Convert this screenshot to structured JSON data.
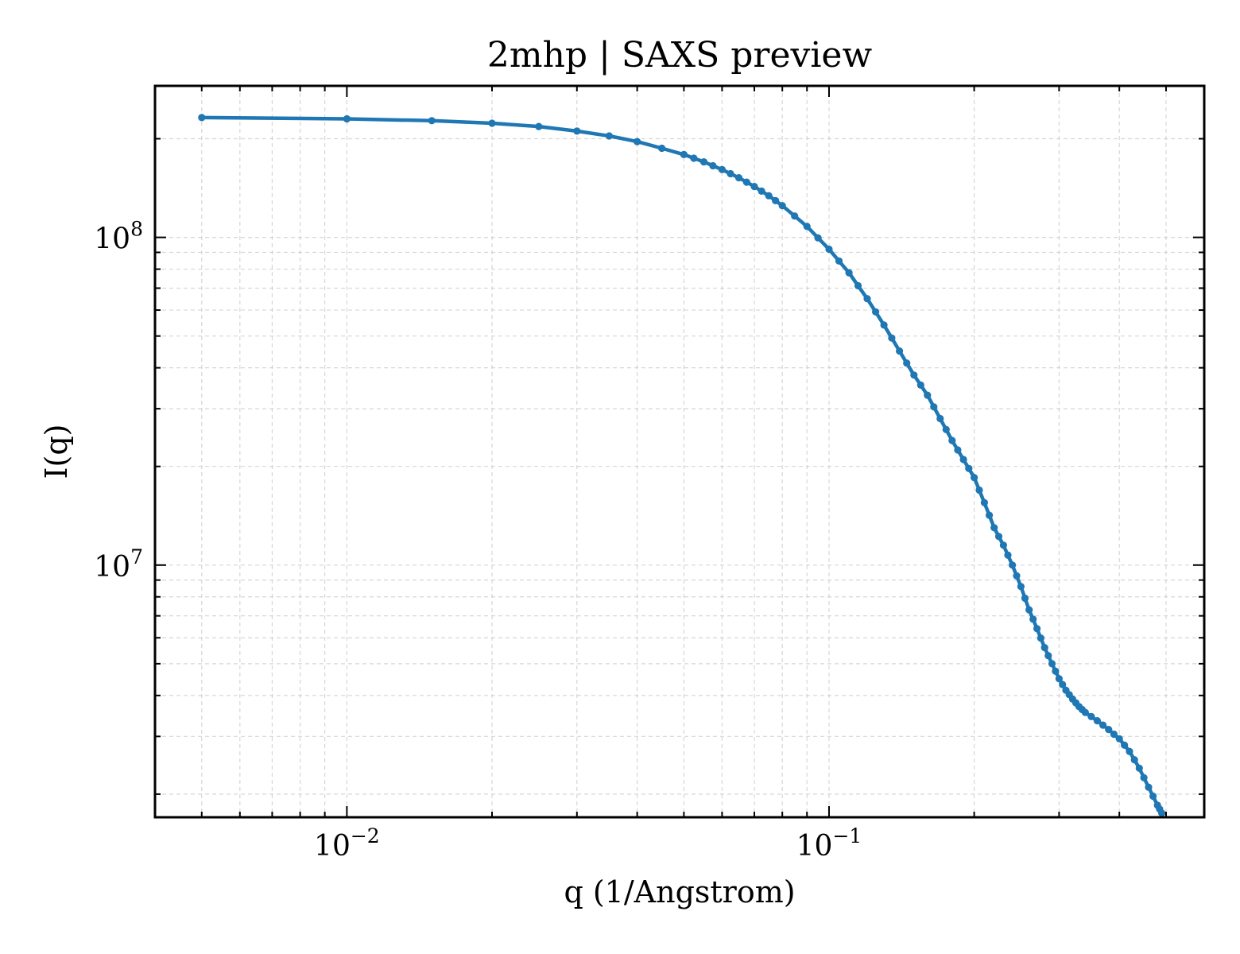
{
  "chart_data": {
    "type": "line",
    "title": "2mhp | SAXS preview",
    "xlabel": "q (1/Angstrom)",
    "ylabel": "I(q)",
    "xscale": "log",
    "yscale": "log",
    "xlim": [
      0.004,
      0.6
    ],
    "ylim": [
      1700000,
      290000000
    ],
    "grid": true,
    "legend": "none",
    "series_color": "#1f77b4",
    "x_ticks": [
      {
        "value": 0.01,
        "base": "10",
        "exp": "−2"
      },
      {
        "value": 0.1,
        "base": "10",
        "exp": "−1"
      }
    ],
    "y_ticks": [
      {
        "value": 10000000,
        "base": "10",
        "exp": "7"
      },
      {
        "value": 100000000,
        "base": "10",
        "exp": "8"
      }
    ],
    "anchors": [
      [
        0.005,
        232000000
      ],
      [
        0.01,
        230000000
      ],
      [
        0.015,
        227000000
      ],
      [
        0.02,
        223000000
      ],
      [
        0.025,
        218000000
      ],
      [
        0.03,
        211000000
      ],
      [
        0.035,
        204000000
      ],
      [
        0.04,
        196000000
      ],
      [
        0.045,
        187000000
      ],
      [
        0.05,
        179000000
      ],
      [
        0.055,
        170000000
      ],
      [
        0.06,
        161000000
      ],
      [
        0.065,
        152000000
      ],
      [
        0.07,
        143000000
      ],
      [
        0.075,
        134000000
      ],
      [
        0.08,
        125000000
      ],
      [
        0.09,
        108000000
      ],
      [
        0.1,
        92000000
      ],
      [
        0.11,
        78000000
      ],
      [
        0.12,
        65000000
      ],
      [
        0.13,
        54000000
      ],
      [
        0.14,
        45000000
      ],
      [
        0.15,
        38000000
      ],
      [
        0.16,
        33000000
      ],
      [
        0.17,
        28000000
      ],
      [
        0.18,
        24000000
      ],
      [
        0.19,
        21000000
      ],
      [
        0.2,
        18500000
      ],
      [
        0.21,
        15500000
      ],
      [
        0.22,
        13000000
      ],
      [
        0.23,
        11500000
      ],
      [
        0.24,
        10000000
      ],
      [
        0.25,
        8600000
      ],
      [
        0.26,
        7300000
      ],
      [
        0.27,
        6400000
      ],
      [
        0.28,
        5600000
      ],
      [
        0.29,
        5000000
      ],
      [
        0.3,
        4500000
      ],
      [
        0.31,
        4150000
      ],
      [
        0.32,
        3900000
      ],
      [
        0.33,
        3700000
      ],
      [
        0.34,
        3550000
      ],
      [
        0.36,
        3350000
      ],
      [
        0.38,
        3150000
      ],
      [
        0.4,
        2950000
      ],
      [
        0.42,
        2700000
      ],
      [
        0.44,
        2400000
      ],
      [
        0.46,
        2100000
      ],
      [
        0.48,
        1850000
      ],
      [
        0.49,
        1750000
      ]
    ]
  }
}
